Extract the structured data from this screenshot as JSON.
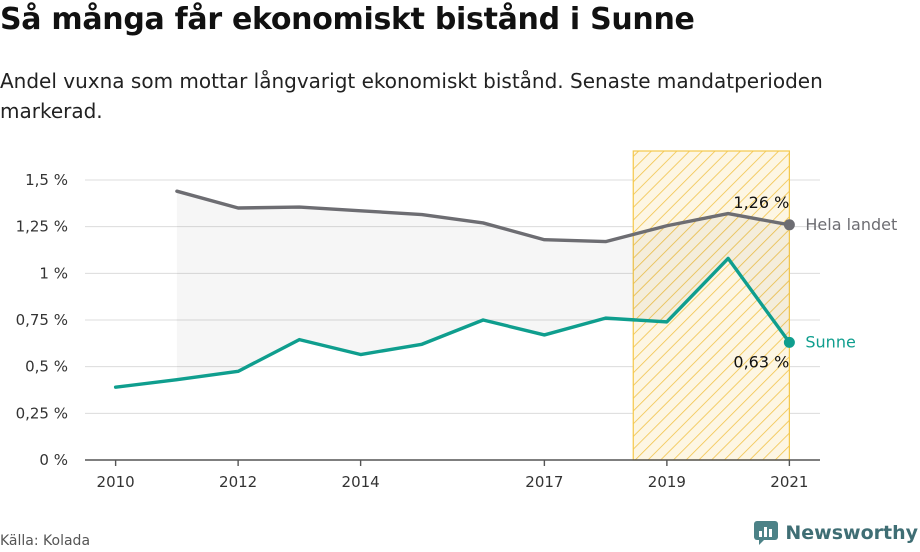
{
  "title": "Så många får ekonomiskt bistånd i Sunne",
  "subtitle": "Andel vuxna som mottar långvarigt ekonomiskt bistånd. Senaste mandatperioden markerad.",
  "source": "Källa: Kolada",
  "brand": "Newsworthy",
  "colors": {
    "national": "#6d6d72",
    "local": "#0f9e8e",
    "highlight": "#f4c84a",
    "grid": "#dcdcdc"
  },
  "chart_data": {
    "type": "line",
    "x_ticks": [
      2010,
      2012,
      2014,
      2017,
      2019,
      2021
    ],
    "y_ticks": [
      "0 %",
      "0,25 %",
      "0,5 %",
      "0,75 %",
      "1 %",
      "1,25 %",
      "1,5 %"
    ],
    "ylim": [
      0,
      1.5
    ],
    "xlim": [
      2009.5,
      2021.5
    ],
    "highlight_period": [
      2018.5,
      2021
    ],
    "series": [
      {
        "name": "Hela landet",
        "end_label": "1,26 %",
        "points": [
          [
            2011,
            1.44
          ],
          [
            2012,
            1.35
          ],
          [
            2013,
            1.355
          ],
          [
            2014,
            1.335
          ],
          [
            2015,
            1.315
          ],
          [
            2016,
            1.27
          ],
          [
            2017,
            1.18
          ],
          [
            2018,
            1.17
          ],
          [
            2019,
            1.255
          ],
          [
            2020,
            1.32
          ],
          [
            2021,
            1.26
          ]
        ]
      },
      {
        "name": "Sunne",
        "end_label": "0,63 %",
        "points": [
          [
            2010,
            0.39
          ],
          [
            2011,
            0.43
          ],
          [
            2012,
            0.475
          ],
          [
            2013,
            0.645
          ],
          [
            2014,
            0.565
          ],
          [
            2015,
            0.62
          ],
          [
            2016,
            0.75
          ],
          [
            2017,
            0.67
          ],
          [
            2018,
            0.76
          ],
          [
            2019,
            0.74
          ],
          [
            2020,
            1.08
          ],
          [
            2021,
            0.63
          ]
        ]
      }
    ]
  }
}
